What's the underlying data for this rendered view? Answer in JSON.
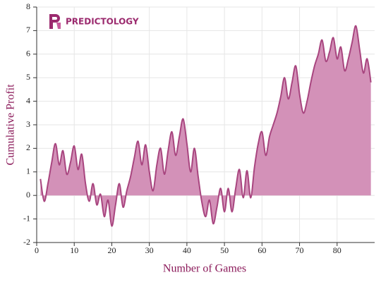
{
  "chart_data": {
    "type": "area",
    "brand": "PREDICTOLOGY",
    "x_label": "Number of Games",
    "y_label": "Cumulative Profit",
    "x": [
      1,
      2,
      3,
      4,
      5,
      6,
      7,
      8,
      9,
      10,
      11,
      12,
      13,
      14,
      15,
      16,
      17,
      18,
      19,
      20,
      21,
      22,
      23,
      24,
      25,
      26,
      27,
      28,
      29,
      30,
      31,
      32,
      33,
      34,
      35,
      36,
      37,
      38,
      39,
      40,
      41,
      42,
      43,
      44,
      45,
      46,
      47,
      48,
      49,
      50,
      51,
      52,
      53,
      54,
      55,
      56,
      57,
      58,
      59,
      60,
      61,
      62,
      63,
      64,
      65,
      66,
      67,
      68,
      69,
      70,
      71,
      72,
      73,
      74,
      75,
      76,
      77,
      78,
      79,
      80,
      81,
      82,
      83,
      84,
      85,
      86,
      87,
      88,
      89
    ],
    "series": [
      {
        "name": "Cumulative Profit",
        "color": "#a8457f",
        "fill": "#d391b8",
        "values": [
          0.7,
          -0.25,
          0.5,
          1.4,
          2.2,
          1.3,
          1.9,
          0.9,
          1.4,
          2.1,
          1.1,
          1.75,
          0.5,
          -0.25,
          0.5,
          -0.4,
          0.05,
          -0.9,
          -0.2,
          -1.3,
          -0.4,
          0.5,
          -0.5,
          0.2,
          0.8,
          1.6,
          2.3,
          1.3,
          2.15,
          1.0,
          0.2,
          1.3,
          2.0,
          0.9,
          1.9,
          2.7,
          1.7,
          2.5,
          3.25,
          2.2,
          1.0,
          2.0,
          0.8,
          -0.3,
          -0.9,
          -0.2,
          -1.2,
          -0.5,
          0.3,
          -0.7,
          0.3,
          -0.7,
          0.3,
          1.1,
          -0.1,
          1.05,
          -0.1,
          1.2,
          2.2,
          2.7,
          1.7,
          2.5,
          3.0,
          3.5,
          4.2,
          5.0,
          4.1,
          4.8,
          5.5,
          4.3,
          3.5,
          4.0,
          4.8,
          5.5,
          6.0,
          6.6,
          5.7,
          6.1,
          6.7,
          5.8,
          6.3,
          5.3,
          5.8,
          6.5,
          7.2,
          6.2,
          5.2,
          5.8,
          4.8
        ]
      }
    ],
    "xlim": [
      0,
      90
    ],
    "xticks": [
      0,
      10,
      20,
      30,
      40,
      50,
      60,
      70,
      80
    ],
    "ylim": [
      -2,
      8
    ],
    "yticks": [
      -2,
      -1,
      0,
      1,
      2,
      3,
      4,
      5,
      6,
      7,
      8
    ],
    "grid": true
  }
}
